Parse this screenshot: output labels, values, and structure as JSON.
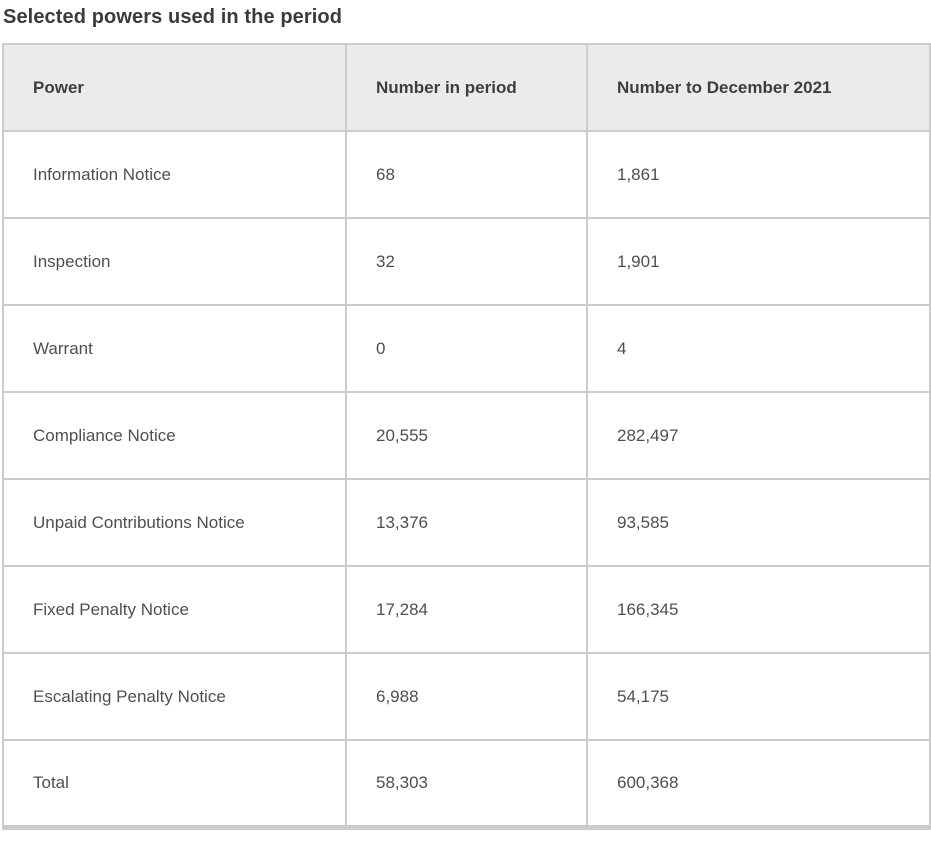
{
  "page": {
    "title": "Selected powers used in the period"
  },
  "table": {
    "columns": [
      "Power",
      "Number in period",
      "Number to December 2021"
    ],
    "rows": [
      {
        "power": "Information Notice",
        "number_in_period": "68",
        "number_to_december_2021": "1,861"
      },
      {
        "power": "Inspection",
        "number_in_period": "32",
        "number_to_december_2021": "1,901"
      },
      {
        "power": "Warrant",
        "number_in_period": "0",
        "number_to_december_2021": "4"
      },
      {
        "power": "Compliance Notice",
        "number_in_period": "20,555",
        "number_to_december_2021": "282,497"
      },
      {
        "power": "Unpaid Contributions Notice",
        "number_in_period": "13,376",
        "number_to_december_2021": "93,585"
      },
      {
        "power": "Fixed Penalty Notice",
        "number_in_period": "17,284",
        "number_to_december_2021": "166,345"
      },
      {
        "power": "Escalating Penalty Notice",
        "number_in_period": "6,988",
        "number_to_december_2021": "54,175"
      },
      {
        "power": "Total",
        "number_in_period": "58,303",
        "number_to_december_2021": "600,368"
      }
    ]
  },
  "chart_data": {
    "type": "table",
    "title": "Selected powers used in the period",
    "categories": [
      "Information Notice",
      "Inspection",
      "Warrant",
      "Compliance Notice",
      "Unpaid Contributions Notice",
      "Fixed Penalty Notice",
      "Escalating Penalty Notice",
      "Total"
    ],
    "series": [
      {
        "name": "Number in period",
        "values": [
          68,
          32,
          0,
          20555,
          13376,
          17284,
          6988,
          58303
        ]
      },
      {
        "name": "Number to December 2021",
        "values": [
          1861,
          1901,
          4,
          282497,
          93585,
          166345,
          54175,
          600368
        ]
      }
    ]
  },
  "colors": {
    "header_bg": "#ebebeb",
    "border": "#cccccc",
    "title_text": "#3b3b3b",
    "header_text": "#3e3e3e",
    "body_text": "#4f4f4f"
  }
}
